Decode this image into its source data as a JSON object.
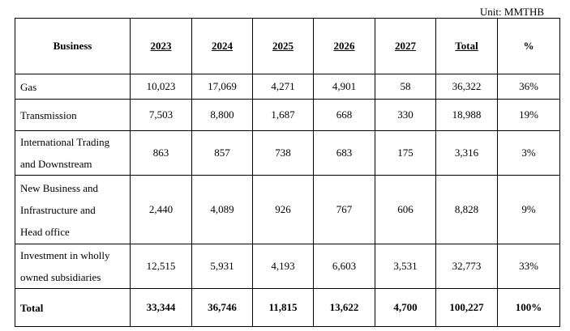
{
  "unit": "Unit: MMTHB",
  "table": {
    "header": [
      "Business",
      "2023",
      "2024",
      "2025",
      "2026",
      "2027",
      "Total",
      "%"
    ],
    "rows": [
      [
        [
          "Gas"
        ],
        "10,023",
        "17,069",
        "4,271",
        "4,901",
        "58",
        "36,322",
        "36%"
      ],
      [
        [
          "Transmission"
        ],
        "7,503",
        "8,800",
        "1,687",
        "668",
        "330",
        "18,988",
        "19%"
      ],
      [
        [
          "International Trading",
          "and Downstream"
        ],
        "863",
        "857",
        "738",
        "683",
        "175",
        "3,316",
        "3%"
      ],
      [
        [
          "New Business and",
          "Infrastructure and",
          "Head office"
        ],
        "2,440",
        "4,089",
        "926",
        "767",
        "606",
        "8,828",
        "9%"
      ],
      [
        [
          "Investment in wholly",
          "owned subsidiaries"
        ],
        "12,515",
        "5,931",
        "4,193",
        "6,603",
        "3,531",
        "32,773",
        "33%"
      ],
      [
        [
          "Total"
        ],
        "33,344",
        "36,746",
        "11,815",
        "13,622",
        "4,700",
        "100,227",
        "100%"
      ]
    ]
  }
}
